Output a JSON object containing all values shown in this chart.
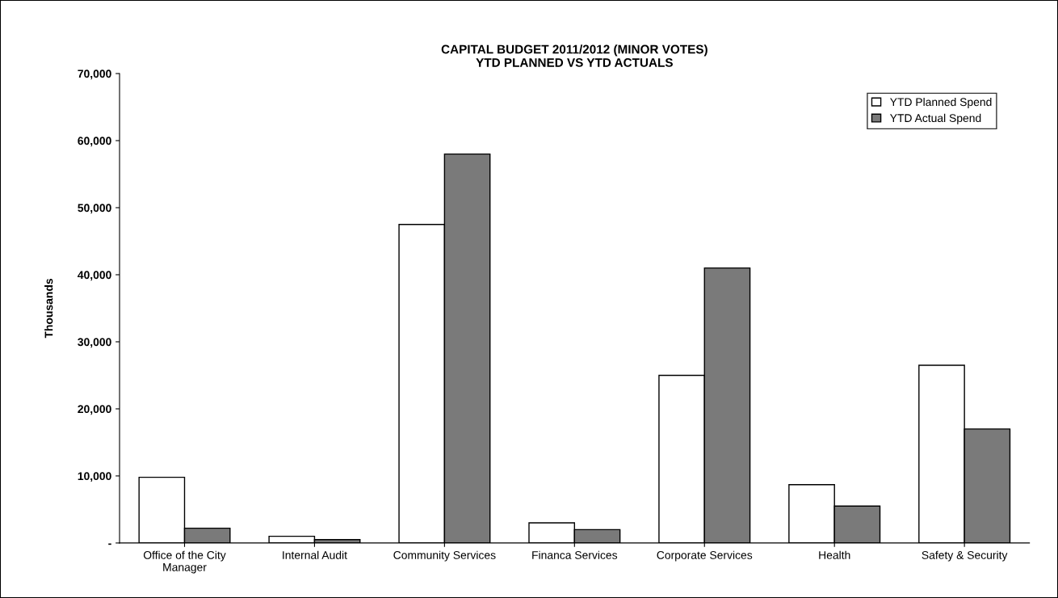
{
  "chart_data": {
    "type": "bar",
    "title": "CAPITAL BUDGET 2011/2012 (MINOR VOTES)\nYTD PLANNED VS YTD ACTUALS",
    "ylabel": "Thousands",
    "categories": [
      "Office of the City\nManager",
      "Internal Audit",
      "Community Services",
      "Financa Services",
      "Corporate Services",
      "Health",
      "Safety & Security"
    ],
    "series": [
      {
        "name": "YTD Planned Spend",
        "color": "#ffffff",
        "values": [
          9800,
          1000,
          47500,
          3000,
          25000,
          8700,
          26500
        ]
      },
      {
        "name": "YTD Actual Spend",
        "color": "#7a7a7a",
        "values": [
          2200,
          500,
          58000,
          2000,
          41000,
          5500,
          17000
        ]
      }
    ],
    "ylim": [
      0,
      70000
    ],
    "yticks": [
      {
        "value": 0,
        "label": "-"
      },
      {
        "value": 10000,
        "label": "10,000"
      },
      {
        "value": 20000,
        "label": "20,000"
      },
      {
        "value": 30000,
        "label": "30,000"
      },
      {
        "value": 40000,
        "label": "40,000"
      },
      {
        "value": 50000,
        "label": "50,000"
      },
      {
        "value": 60000,
        "label": "60,000"
      },
      {
        "value": 70000,
        "label": "70,000"
      }
    ],
    "grid": false,
    "legend": "top right"
  }
}
